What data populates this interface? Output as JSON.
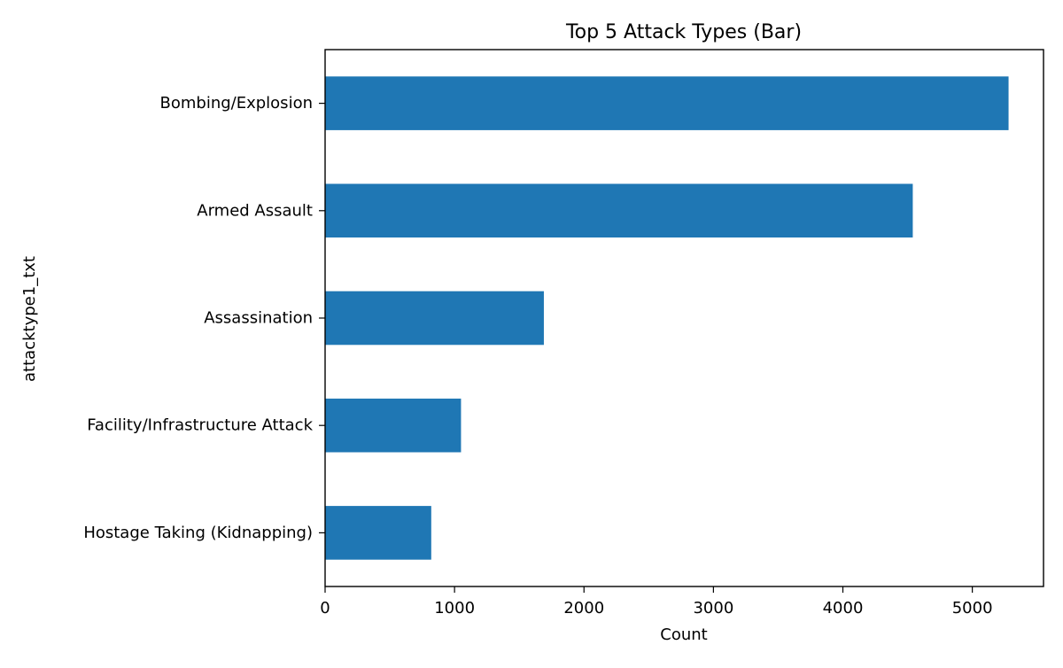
{
  "chart_data": {
    "type": "bar",
    "orientation": "horizontal",
    "title": "Top 5 Attack Types (Bar)",
    "xlabel": "Count",
    "ylabel": "attacktype1_txt",
    "categories": [
      "Bombing/Explosion",
      "Armed Assault",
      "Assassination",
      "Facility/Infrastructure Attack",
      "Hostage Taking (Kidnapping)"
    ],
    "values": [
      5280,
      4540,
      1690,
      1050,
      820
    ],
    "xlim": [
      0,
      5550
    ],
    "xticks": [
      0,
      1000,
      2000,
      3000,
      4000,
      5000
    ],
    "grid": false,
    "legend": "none",
    "bar_color": "#1f77b4"
  }
}
